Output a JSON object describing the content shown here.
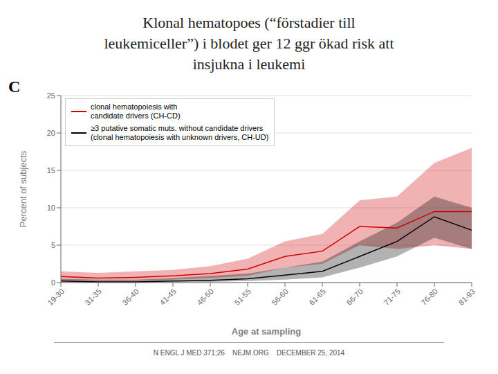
{
  "chart_data": {
    "type": "line",
    "title": "Klonal hematopoes (“förstadier till\nleukemiceller”) i blodet ger 12 ggr ökad risk att\ninsjukna i leukemi",
    "annotations": [
      "C",
      "N ENGL J MED 371;26    NEJM.ORG    DECEMBER 25, 2014"
    ],
    "xlabel": "Age at sampling",
    "ylabel": "Percent of subjects",
    "categories": [
      "19-30",
      "31-35",
      "36-40",
      "41-45",
      "46-50",
      "51-55",
      "56-60",
      "61-65",
      "66-70",
      "71-75",
      "76-80",
      "81-93"
    ],
    "series": [
      {
        "name": "clonal hematopoiesis with\ncandidate drivers (CH-CD)",
        "color": "#cc0000",
        "values": [
          0.8,
          0.6,
          0.7,
          0.9,
          1.2,
          1.8,
          3.5,
          4.2,
          7.5,
          7.3,
          9.5,
          9.5
        ],
        "lower": [
          0.3,
          0.2,
          0.2,
          0.4,
          0.6,
          0.9,
          2.0,
          2.5,
          5.0,
          4.5,
          5.0,
          4.5
        ],
        "upper": [
          1.5,
          1.3,
          1.5,
          1.7,
          2.2,
          3.2,
          5.5,
          6.5,
          11.0,
          11.5,
          16.0,
          18.0
        ]
      },
      {
        "name": "≥3 putative somatic muts. without candidate drivers\n(clonal hematopoiesis with unknown drivers, CH-UD)",
        "color": "#000000",
        "values": [
          0.2,
          0.1,
          0.1,
          0.2,
          0.3,
          0.5,
          1.0,
          1.5,
          3.5,
          5.5,
          8.8,
          7.0
        ],
        "lower": [
          0.05,
          0.02,
          0.02,
          0.05,
          0.1,
          0.2,
          0.4,
          0.7,
          2.0,
          3.5,
          6.0,
          4.5
        ],
        "upper": [
          0.5,
          0.4,
          0.4,
          0.6,
          0.9,
          1.2,
          2.0,
          2.8,
          5.5,
          8.0,
          11.5,
          10.0
        ]
      }
    ],
    "ylim": [
      0,
      25
    ],
    "yticks": [
      0,
      5,
      10,
      15,
      20,
      25
    ],
    "grid": true,
    "legend": "upper left"
  }
}
